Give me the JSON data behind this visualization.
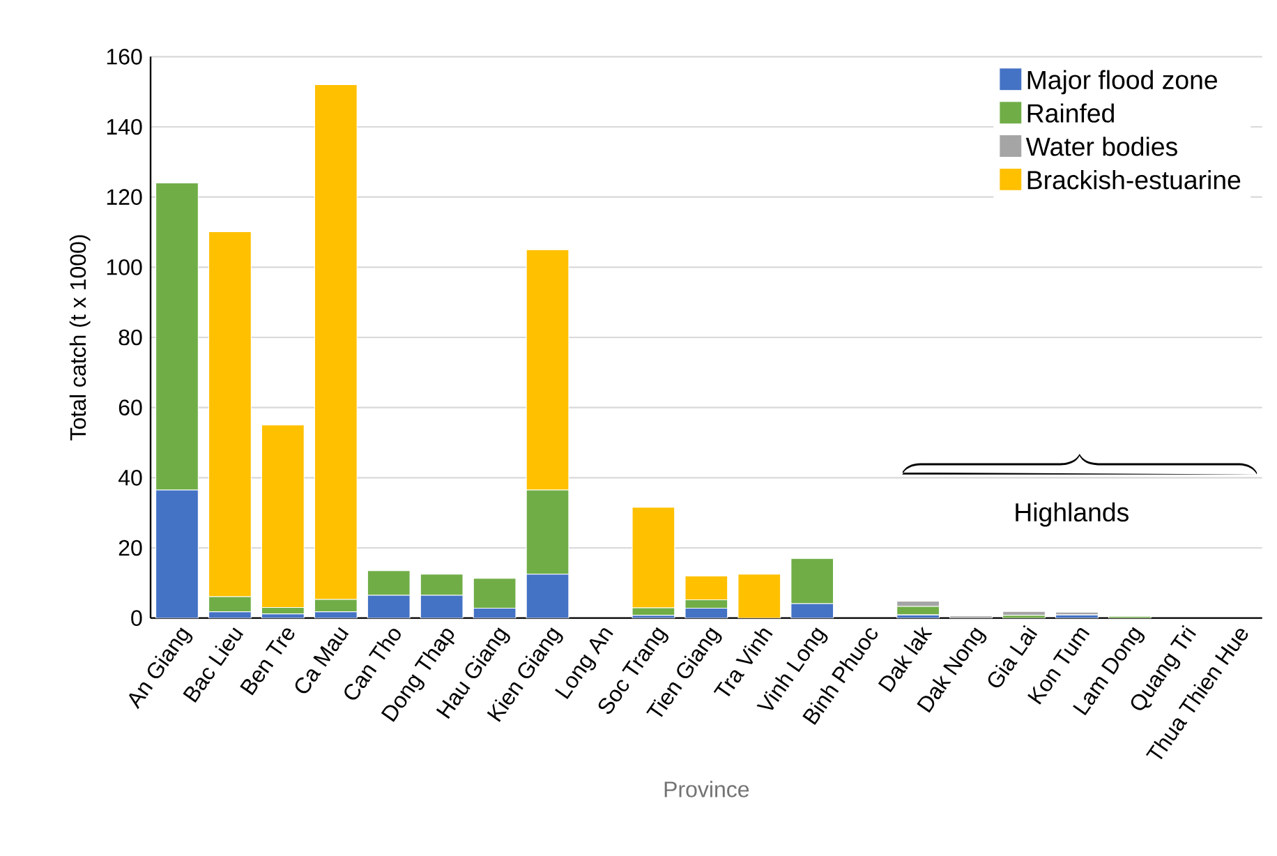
{
  "chart_data": {
    "type": "bar",
    "stacked": true,
    "xlabel": "Province",
    "ylabel": "Total catch (t x 1000)",
    "categories": [
      "An Giang",
      "Bac Lieu",
      "Ben Tre",
      "Ca Mau",
      "Can Tho",
      "Dong Thap",
      "Hau Giang",
      "Kien Giang",
      "Long An",
      "Soc Trang",
      "Tien Giang",
      "Tra Vinh",
      "Vinh Long",
      "Binh Phuoc",
      "Dak lak",
      "Dak Nong",
      "Gia Lai",
      "Kon Tum",
      "Lam Dong",
      "Quang Tri",
      "Thua Thien Hue"
    ],
    "series": [
      {
        "name": "Major flood zone",
        "color": "#4472c4",
        "values": [
          36.5,
          1.8,
          1.2,
          1.8,
          6.5,
          6.5,
          2.8,
          12.5,
          0,
          0.8,
          2.8,
          0,
          4.1,
          0,
          0.9,
          0,
          null,
          0.9,
          0,
          0,
          0
        ]
      },
      {
        "name": "Rainfed",
        "color": "#70ad47",
        "values": [
          87.5,
          4.3,
          1.8,
          3.5,
          7,
          6,
          8.5,
          24,
          0,
          2.1,
          2.4,
          0,
          12.9,
          0,
          2.4,
          null,
          0.8,
          0,
          0.5,
          0,
          0
        ]
      },
      {
        "name": "Water bodies",
        "color": "#a5a5a5",
        "values": [
          0,
          0,
          0,
          0,
          0,
          0,
          0,
          0,
          0,
          0,
          0,
          0,
          0,
          0,
          1.5,
          0.6,
          1.1,
          0.8,
          0,
          0,
          0
        ]
      },
      {
        "name": "Brackish-estuarine",
        "color": "#ffc000",
        "values": [
          0,
          104,
          52,
          146.7,
          0,
          0,
          0,
          68.5,
          0,
          28.7,
          6.8,
          12.5,
          0,
          0,
          0,
          0,
          0,
          0,
          0,
          0,
          0
        ]
      }
    ],
    "ylim": [
      0,
      160
    ],
    "yticks": [
      0,
      20,
      40,
      60,
      80,
      100,
      120,
      140,
      160
    ],
    "grid": "y",
    "legend": "top right",
    "annotations": [
      "Highlands"
    ]
  }
}
